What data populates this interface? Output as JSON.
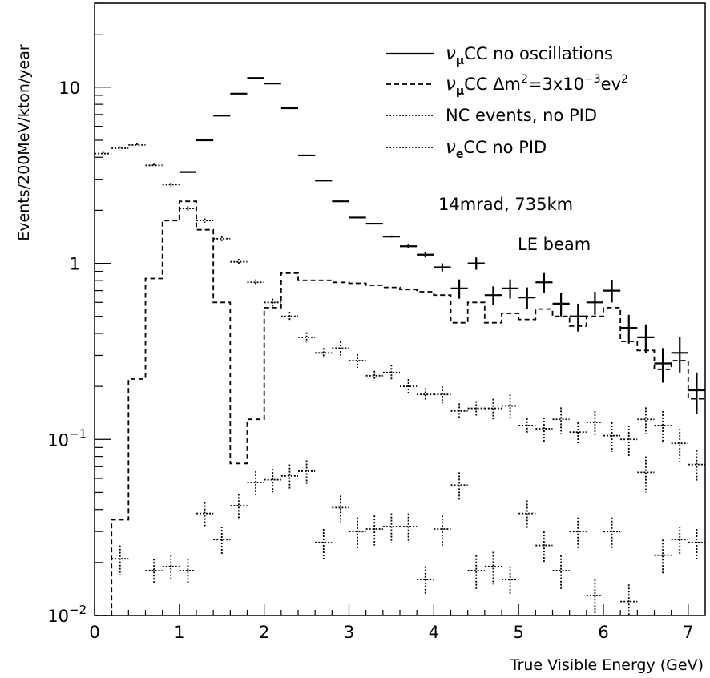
{
  "chart_data": {
    "type": "line",
    "xlabel": "True Visible Energy (GeV)",
    "ylabel": "Events/200MeV/kton/year",
    "xlim": [
      0,
      7.2
    ],
    "ylim": [
      0.01,
      30
    ],
    "y_scale": "log",
    "bin_width": 0.2,
    "x_ticks": [
      "0",
      "1",
      "2",
      "3",
      "4",
      "5",
      "6",
      "7"
    ],
    "y_ticks": [
      {
        "value": 0.01,
        "label": "10",
        "exp": "−2"
      },
      {
        "value": 0.1,
        "label": "10",
        "exp": "−1"
      },
      {
        "value": 1,
        "label": "1",
        "exp": ""
      },
      {
        "value": 10,
        "label": "10",
        "exp": ""
      }
    ],
    "legend_position": "top-right",
    "annotations": [
      "14mrad, 735km",
      "LE beam"
    ],
    "legend": [
      {
        "greek": "ν",
        "sub": "μ",
        "rest": "CC no oscillations",
        "style": "solid"
      },
      {
        "greek": "ν",
        "sub": "μ",
        "rest": "CC Δm",
        "sup": "2",
        "rest2": "=3x10",
        "sup2": "−3",
        "rest3": "ev",
        "sup3": "2",
        "style": "dashed"
      },
      {
        "greek": "",
        "sub": "",
        "rest": "NC events, no PID",
        "style": "dotted"
      },
      {
        "greek": "ν",
        "sub": "e",
        "rest": "CC no PID",
        "style": "dotted"
      }
    ],
    "series": [
      {
        "style": "solid",
        "x": [
          1.1,
          1.3,
          1.5,
          1.7,
          1.9,
          2.1,
          2.3,
          2.5,
          2.7,
          2.9,
          3.1,
          3.3,
          3.5,
          3.7,
          3.9,
          4.1,
          4.3,
          4.5,
          4.7,
          4.9,
          5.1,
          5.3,
          5.5,
          5.7,
          5.9,
          6.1,
          6.3,
          6.5,
          6.7,
          6.9,
          7.1
        ],
        "values": [
          3.3,
          5.0,
          6.9,
          9.2,
          11.3,
          10.5,
          7.6,
          4.1,
          2.95,
          2.25,
          1.82,
          1.68,
          1.42,
          1.25,
          1.12,
          0.95,
          0.72,
          1.0,
          0.66,
          0.72,
          0.64,
          0.78,
          0.59,
          0.5,
          0.6,
          0.7,
          0.43,
          0.38,
          0.27,
          0.31,
          0.19
        ],
        "errors": [
          0,
          0,
          0,
          0,
          0,
          0,
          0,
          0,
          0,
          0,
          0,
          0,
          0.02,
          0.03,
          0.04,
          0.05,
          0.09,
          0.08,
          0.08,
          0.09,
          0.09,
          0.1,
          0.09,
          0.09,
          0.09,
          0.1,
          0.08,
          0.07,
          0.06,
          0.07,
          0.05
        ]
      },
      {
        "style": "dashed",
        "x": [
          0.1,
          0.3,
          0.5,
          0.7,
          0.9,
          1.1,
          1.3,
          1.5,
          1.7,
          1.9,
          2.1,
          2.3,
          2.5,
          2.7,
          2.9,
          3.1,
          3.3,
          3.5,
          3.7,
          3.9,
          4.1,
          4.3,
          4.5,
          4.7,
          4.9,
          5.1,
          5.3,
          5.5,
          5.7,
          5.9,
          6.1,
          6.3,
          6.5,
          6.7,
          6.9,
          7.1
        ],
        "values": [
          0.008,
          0.035,
          0.22,
          0.82,
          1.75,
          2.25,
          1.55,
          0.6,
          0.073,
          0.13,
          0.56,
          0.88,
          0.8,
          0.8,
          0.78,
          0.77,
          0.75,
          0.73,
          0.71,
          0.69,
          0.66,
          0.46,
          0.6,
          0.46,
          0.52,
          0.48,
          0.55,
          0.5,
          0.44,
          0.5,
          0.56,
          0.36,
          0.32,
          0.25,
          0.28,
          0.17
        ]
      },
      {
        "style": "dotted",
        "x": [
          0.1,
          0.3,
          0.5,
          0.7,
          0.9,
          1.1,
          1.3,
          1.5,
          1.7,
          1.9,
          2.1,
          2.3,
          2.5,
          2.7,
          2.9,
          3.1,
          3.3,
          3.5,
          3.7,
          3.9,
          4.1,
          4.3,
          4.5,
          4.7,
          4.9,
          5.1,
          5.3,
          5.5,
          5.7,
          5.9,
          6.1,
          6.3,
          6.5,
          6.7,
          6.9,
          7.1
        ],
        "values": [
          4.2,
          4.5,
          4.7,
          3.6,
          2.8,
          2.05,
          1.75,
          1.38,
          1.02,
          0.78,
          0.6,
          0.5,
          0.38,
          0.31,
          0.33,
          0.28,
          0.23,
          0.24,
          0.2,
          0.18,
          0.18,
          0.145,
          0.15,
          0.15,
          0.155,
          0.12,
          0.115,
          0.13,
          0.11,
          0.125,
          0.105,
          0.1,
          0.13,
          0.12,
          0.095,
          0.072
        ],
        "errors": [
          0.1,
          0.1,
          0.1,
          0.08,
          0.07,
          0.06,
          0.05,
          0.045,
          0.04,
          0.03,
          0.03,
          0.03,
          0.025,
          0.02,
          0.03,
          0.025,
          0.015,
          0.025,
          0.02,
          0.015,
          0.02,
          0.015,
          0.015,
          0.02,
          0.025,
          0.012,
          0.018,
          0.022,
          0.015,
          0.02,
          0.02,
          0.02,
          0.022,
          0.025,
          0.02,
          0.015
        ]
      },
      {
        "style": "dotted",
        "x": [
          0.3,
          0.7,
          0.9,
          1.1,
          1.3,
          1.5,
          1.7,
          1.9,
          2.1,
          2.3,
          2.5,
          2.7,
          2.9,
          3.1,
          3.3,
          3.5,
          3.7,
          3.9,
          4.1,
          4.3,
          4.5,
          4.7,
          4.9,
          5.1,
          5.3,
          5.5,
          5.7,
          5.9,
          6.1,
          6.3,
          6.5,
          6.7,
          6.9,
          7.1
        ],
        "values": [
          0.021,
          0.018,
          0.019,
          0.018,
          0.038,
          0.027,
          0.042,
          0.057,
          0.059,
          0.062,
          0.066,
          0.026,
          0.041,
          0.03,
          0.031,
          0.032,
          0.032,
          0.016,
          0.031,
          0.055,
          0.018,
          0.019,
          0.016,
          0.038,
          0.025,
          0.018,
          0.03,
          0.013,
          0.03,
          0.012,
          0.065,
          0.022,
          0.027,
          0.026
        ],
        "errors": [
          0.004,
          0.003,
          0.003,
          0.003,
          0.006,
          0.005,
          0.007,
          0.009,
          0.009,
          0.01,
          0.01,
          0.005,
          0.007,
          0.006,
          0.006,
          0.006,
          0.006,
          0.003,
          0.006,
          0.01,
          0.004,
          0.004,
          0.003,
          0.007,
          0.005,
          0.004,
          0.006,
          0.003,
          0.006,
          0.003,
          0.015,
          0.005,
          0.005,
          0.005
        ]
      }
    ]
  }
}
